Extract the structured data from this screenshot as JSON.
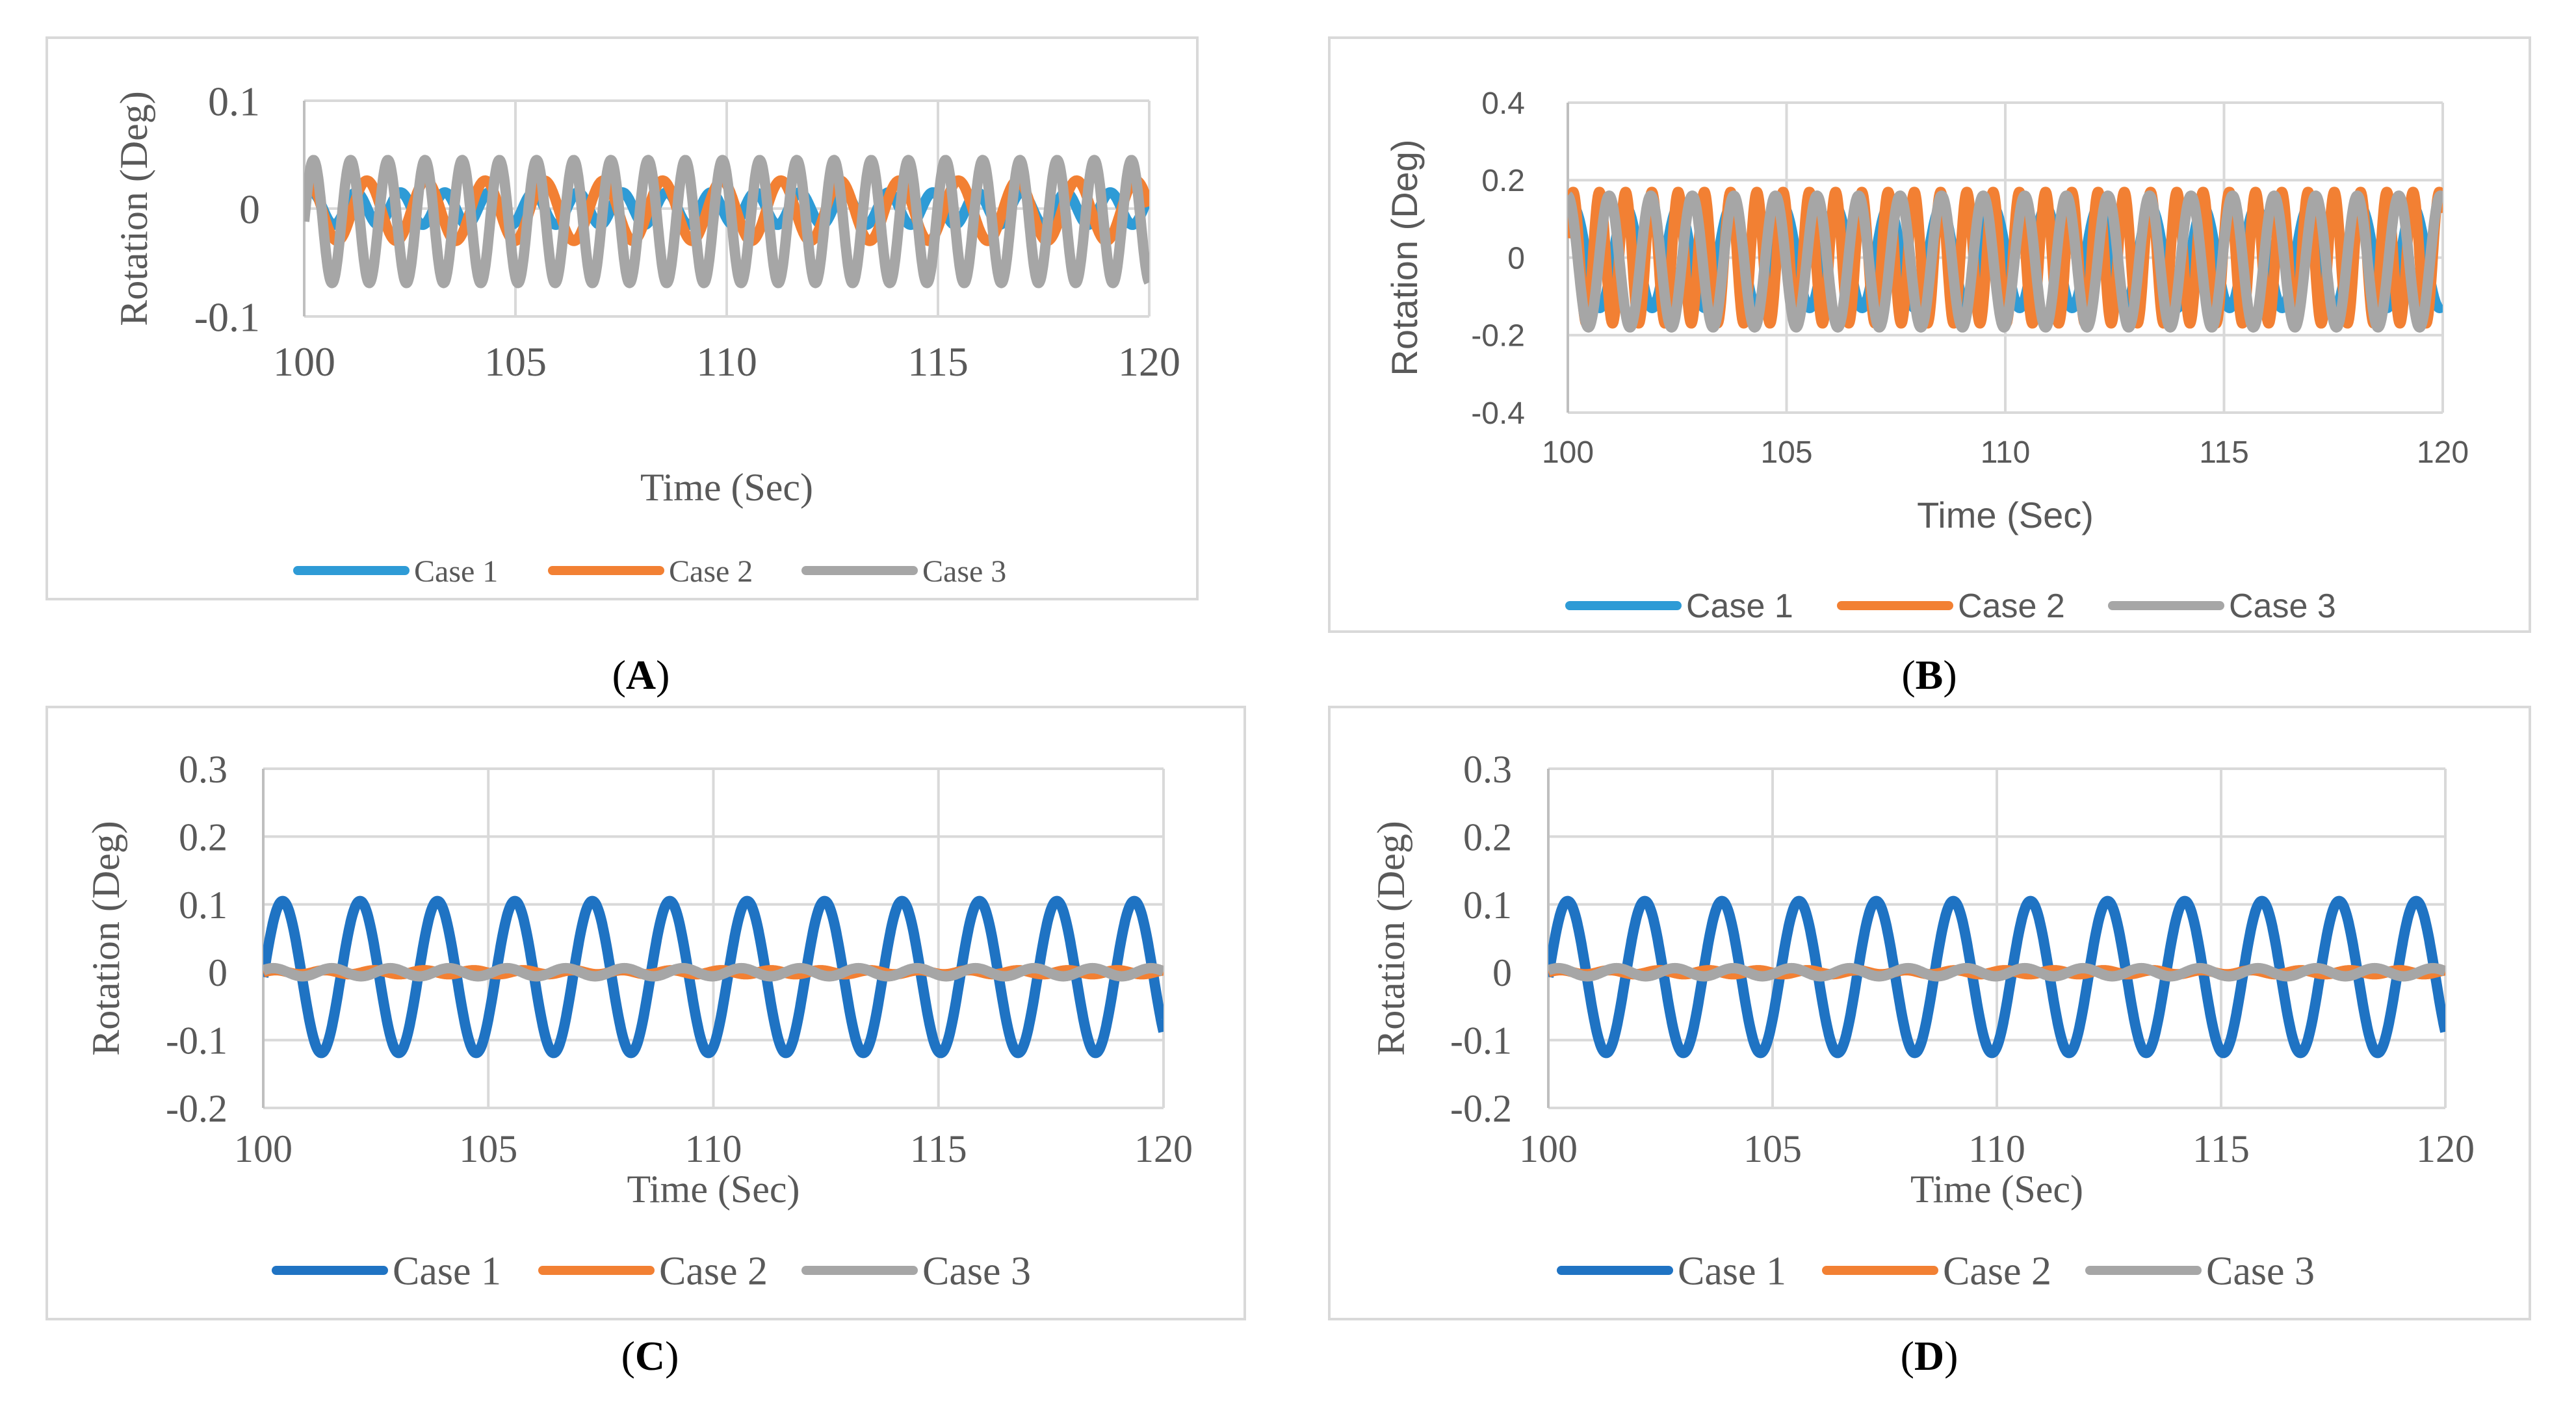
{
  "chart_data": [
    {
      "panel": "A",
      "type": "line",
      "caption": "A",
      "title": "",
      "xlabel": "Time (Sec)",
      "ylabel": "Rotation (Deg)",
      "xlim": [
        100,
        120
      ],
      "ylim": [
        -0.1,
        0.1
      ],
      "xticks": [
        "100",
        "105",
        "110",
        "115",
        "120"
      ],
      "yticks": [
        "0.1",
        "0",
        "-0.1"
      ],
      "ytick_values": [
        0.1,
        0,
        -0.1
      ],
      "grid": true,
      "legend": "bottom",
      "series": [
        {
          "name": "Case 1",
          "color": "#2E9BD6",
          "amplitude": 0.015,
          "offset": 0.0,
          "period": 1.05,
          "phase": 0.5
        },
        {
          "name": "Case 2",
          "color": "#F28033",
          "amplitude": 0.028,
          "offset": -0.002,
          "period": 1.4,
          "phase": 1.2
        },
        {
          "name": "Case 3",
          "color": "#A6A6A6",
          "amplitude": 0.057,
          "offset": -0.012,
          "period": 0.88,
          "phase": 0.0
        }
      ]
    },
    {
      "panel": "B",
      "type": "line",
      "caption": "B",
      "title": "",
      "xlabel": "Time (Sec)",
      "ylabel": "Rotation (Deg)",
      "xlim": [
        100,
        120
      ],
      "ylim": [
        -0.4,
        0.4
      ],
      "xticks": [
        "100",
        "105",
        "110",
        "115",
        "120"
      ],
      "yticks": [
        "0.4",
        "0.2",
        "0",
        "-0.2",
        "-0.4"
      ],
      "ytick_values": [
        0.4,
        0.2,
        0,
        -0.2,
        -0.4
      ],
      "grid": true,
      "legend": "bottom",
      "series": [
        {
          "name": "Case 1",
          "color": "#2E9BD6",
          "amplitude": 0.13,
          "offset": 0.0,
          "period": 1.2,
          "phase": 0.9
        },
        {
          "name": "Case 2",
          "color": "#F28033",
          "amplitude": 0.17,
          "offset": 0.0,
          "period": 0.6,
          "phase": 0.3
        },
        {
          "name": "Case 3",
          "color": "#A6A6A6",
          "amplitude": 0.17,
          "offset": -0.01,
          "period": 0.95,
          "phase": 1.6
        }
      ]
    },
    {
      "panel": "C",
      "type": "line",
      "caption": "C",
      "title": "",
      "xlabel": "Time (Sec)",
      "ylabel": "Rotation (Deg)",
      "xlim": [
        100,
        120
      ],
      "ylim": [
        -0.2,
        0.3
      ],
      "xticks": [
        "100",
        "105",
        "110",
        "115",
        "120"
      ],
      "yticks": [
        "0.3",
        "0.2",
        "0.1",
        "0",
        "-0.1",
        "-0.2"
      ],
      "ytick_values": [
        0.3,
        0.2,
        0.1,
        0,
        -0.1,
        -0.2
      ],
      "grid": true,
      "legend": "bottom",
      "series": [
        {
          "name": "Case 1",
          "color": "#1F73C3",
          "amplitude": 0.112,
          "offset": -0.007,
          "period": 1.72,
          "phase": -0.0
        },
        {
          "name": "Case 2",
          "color": "#F28033",
          "amplitude": 0.003,
          "offset": 0.0,
          "period": 1.1,
          "phase": 0.0
        },
        {
          "name": "Case 3",
          "color": "#A6A6A6",
          "amplitude": 0.006,
          "offset": 0.0,
          "period": 1.3,
          "phase": 0.5
        }
      ]
    },
    {
      "panel": "D",
      "type": "line",
      "caption": "D",
      "title": "",
      "xlabel": "Time (Sec)",
      "ylabel": "Rotation (Deg)",
      "xlim": [
        100,
        120
      ],
      "ylim": [
        -0.2,
        0.3
      ],
      "xticks": [
        "100",
        "105",
        "110",
        "115",
        "120"
      ],
      "yticks": [
        "0.3",
        "0.2",
        "0.1",
        "0",
        "-0.1",
        "-0.2"
      ],
      "ytick_values": [
        0.3,
        0.2,
        0.1,
        0,
        -0.1,
        -0.2
      ],
      "grid": true,
      "legend": "bottom",
      "series": [
        {
          "name": "Case 1",
          "color": "#1F73C3",
          "amplitude": 0.112,
          "offset": -0.007,
          "period": 1.72,
          "phase": -0.0
        },
        {
          "name": "Case 2",
          "color": "#F28033",
          "amplitude": 0.003,
          "offset": 0.0,
          "period": 1.1,
          "phase": 0.0
        },
        {
          "name": "Case 3",
          "color": "#A6A6A6",
          "amplitude": 0.006,
          "offset": 0.0,
          "period": 1.3,
          "phase": 0.5
        }
      ]
    }
  ]
}
